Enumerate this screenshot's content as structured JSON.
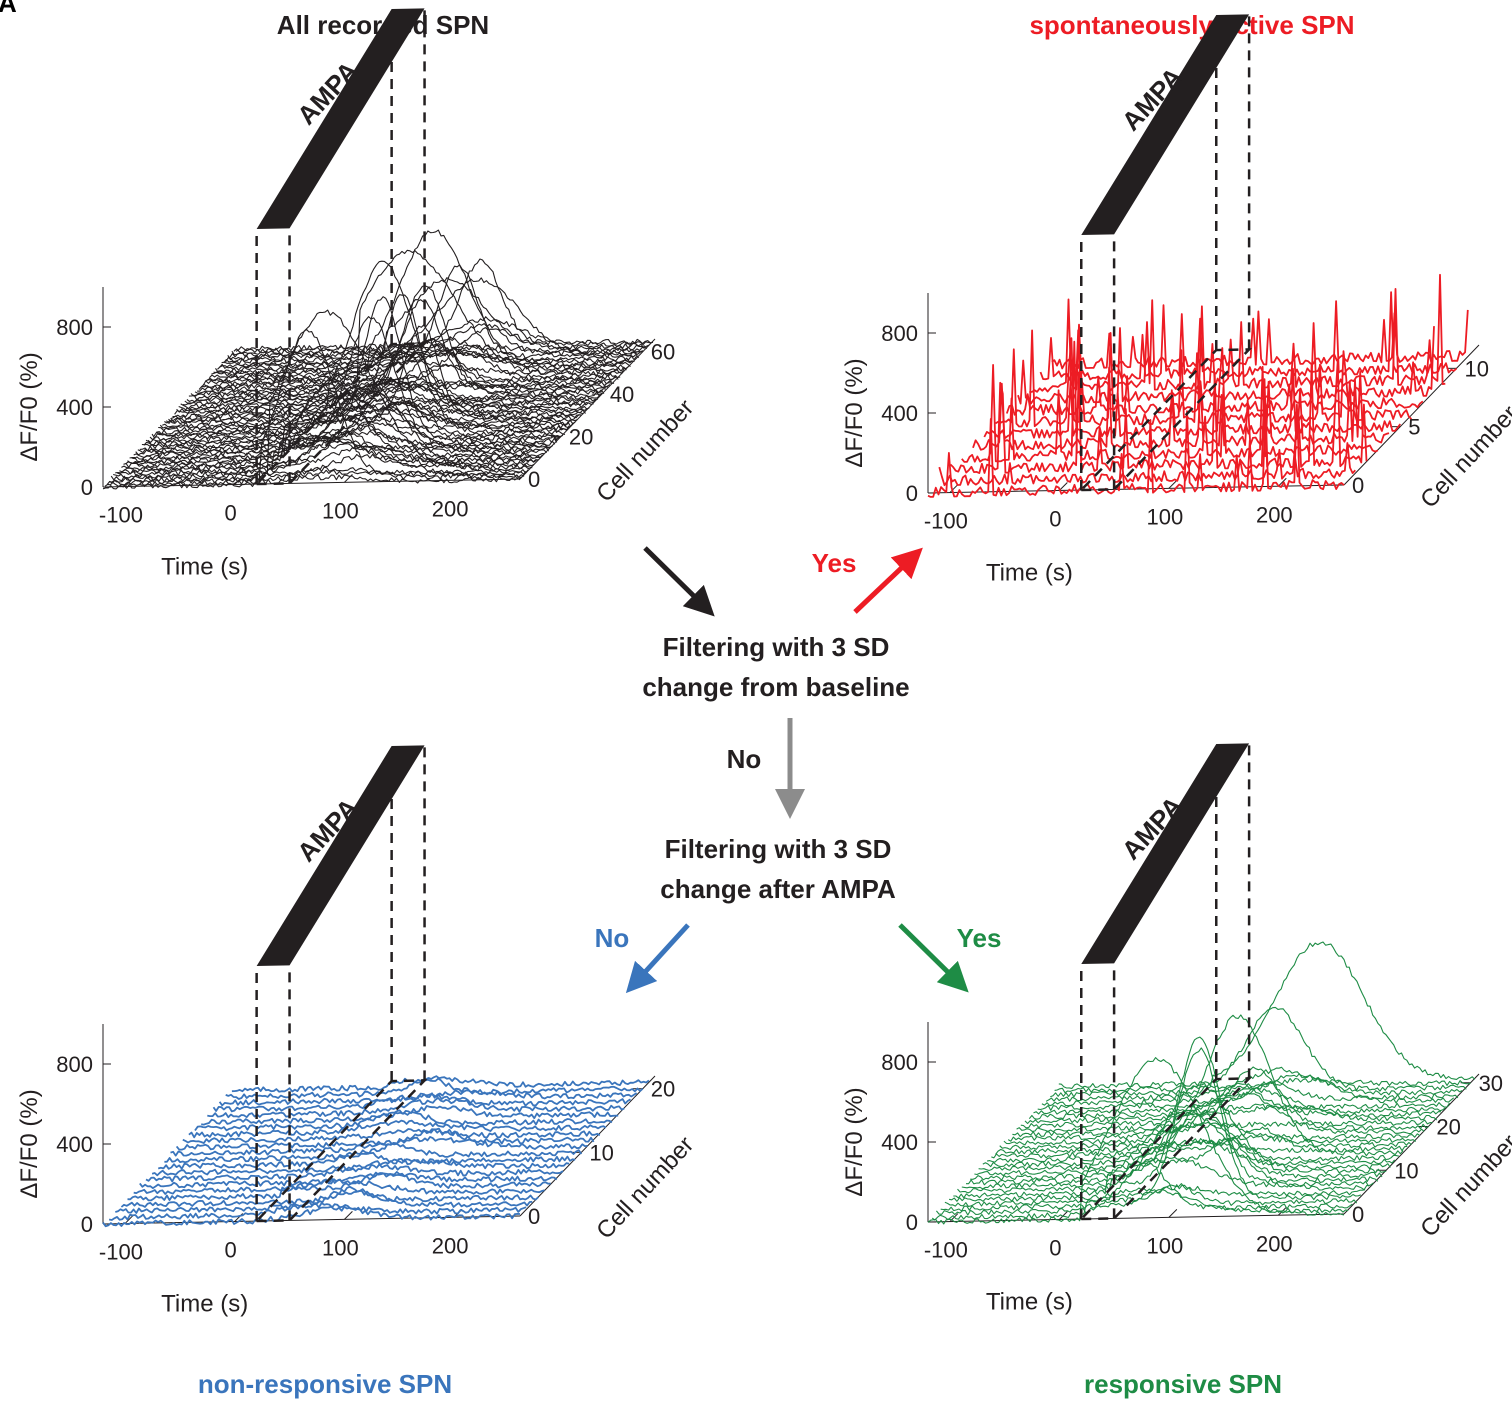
{
  "panel_letter": "A",
  "colors": {
    "all": "#231f20",
    "spontaneous": "#ed1c24",
    "nonresponsive": "#3a75bc",
    "responsive": "#1e8c45",
    "arrow_no": "#8c8c8c",
    "dash": "#231f20"
  },
  "flow": {
    "filter1_line1": "Filtering with 3 SD",
    "filter1_line2": "change from baseline",
    "filter2_line1": "Filtering with 3 SD",
    "filter2_line2": "change after AMPA",
    "yes_spontaneous": "Yes",
    "no_center": "No",
    "no_nonresponsive": "No",
    "yes_responsive": "Yes"
  },
  "chart_data": [
    {
      "type": "line",
      "id": "all",
      "title": "All recorded SPN",
      "stimulus_label": "AMPA",
      "xlabel": "Time (s)",
      "ylabel": "ΔF/F0 (%)",
      "zlabel": "Cell number",
      "x_ticks": [
        "-100",
        "0",
        "100",
        "200"
      ],
      "y_ticks": [
        "0",
        "400",
        "800"
      ],
      "z_ticks": [
        "0",
        "20",
        "40",
        "60"
      ],
      "xlim": [
        -120,
        260
      ],
      "ylim": [
        0,
        1000
      ],
      "zlim": [
        0,
        66
      ],
      "stimulus_window": [
        20,
        50
      ],
      "n_series": 66,
      "color": "#231f20"
    },
    {
      "type": "line",
      "id": "spontaneous",
      "title": "spontaneously active SPN",
      "stimulus_label": "AMPA",
      "xlabel": "Time (s)",
      "ylabel": "ΔF/F0 (%)",
      "zlabel": "Cell number",
      "x_ticks": [
        "-100",
        "0",
        "100",
        "200"
      ],
      "y_ticks": [
        "0",
        "400",
        "800"
      ],
      "z_ticks": [
        "0",
        "5",
        "10"
      ],
      "xlim": [
        -120,
        260
      ],
      "ylim": [
        0,
        1000
      ],
      "zlim": [
        0,
        12
      ],
      "stimulus_window": [
        20,
        50
      ],
      "n_series": 12,
      "color": "#ed1c24"
    },
    {
      "type": "line",
      "id": "nonresponsive",
      "title": "non-responsive SPN",
      "stimulus_label": "AMPA",
      "xlabel": "Time (s)",
      "ylabel": "ΔF/F0 (%)",
      "zlabel": "Cell number",
      "x_ticks": [
        "-100",
        "0",
        "100",
        "200"
      ],
      "y_ticks": [
        "0",
        "400",
        "800"
      ],
      "z_ticks": [
        "0",
        "10",
        "20"
      ],
      "xlim": [
        -120,
        260
      ],
      "ylim": [
        0,
        1000
      ],
      "zlim": [
        0,
        22
      ],
      "stimulus_window": [
        20,
        50
      ],
      "n_series": 22,
      "color": "#3a75bc"
    },
    {
      "type": "line",
      "id": "responsive",
      "title": "responsive SPN",
      "stimulus_label": "AMPA",
      "xlabel": "Time (s)",
      "ylabel": "ΔF/F0 (%)",
      "zlabel": "Cell number",
      "x_ticks": [
        "-100",
        "0",
        "100",
        "200"
      ],
      "y_ticks": [
        "0",
        "400",
        "800"
      ],
      "z_ticks": [
        "0",
        "10",
        "20",
        "30"
      ],
      "xlim": [
        -120,
        260
      ],
      "ylim": [
        0,
        1000
      ],
      "zlim": [
        0,
        32
      ],
      "stimulus_window": [
        20,
        50
      ],
      "n_series": 32,
      "color": "#1e8c45"
    }
  ]
}
